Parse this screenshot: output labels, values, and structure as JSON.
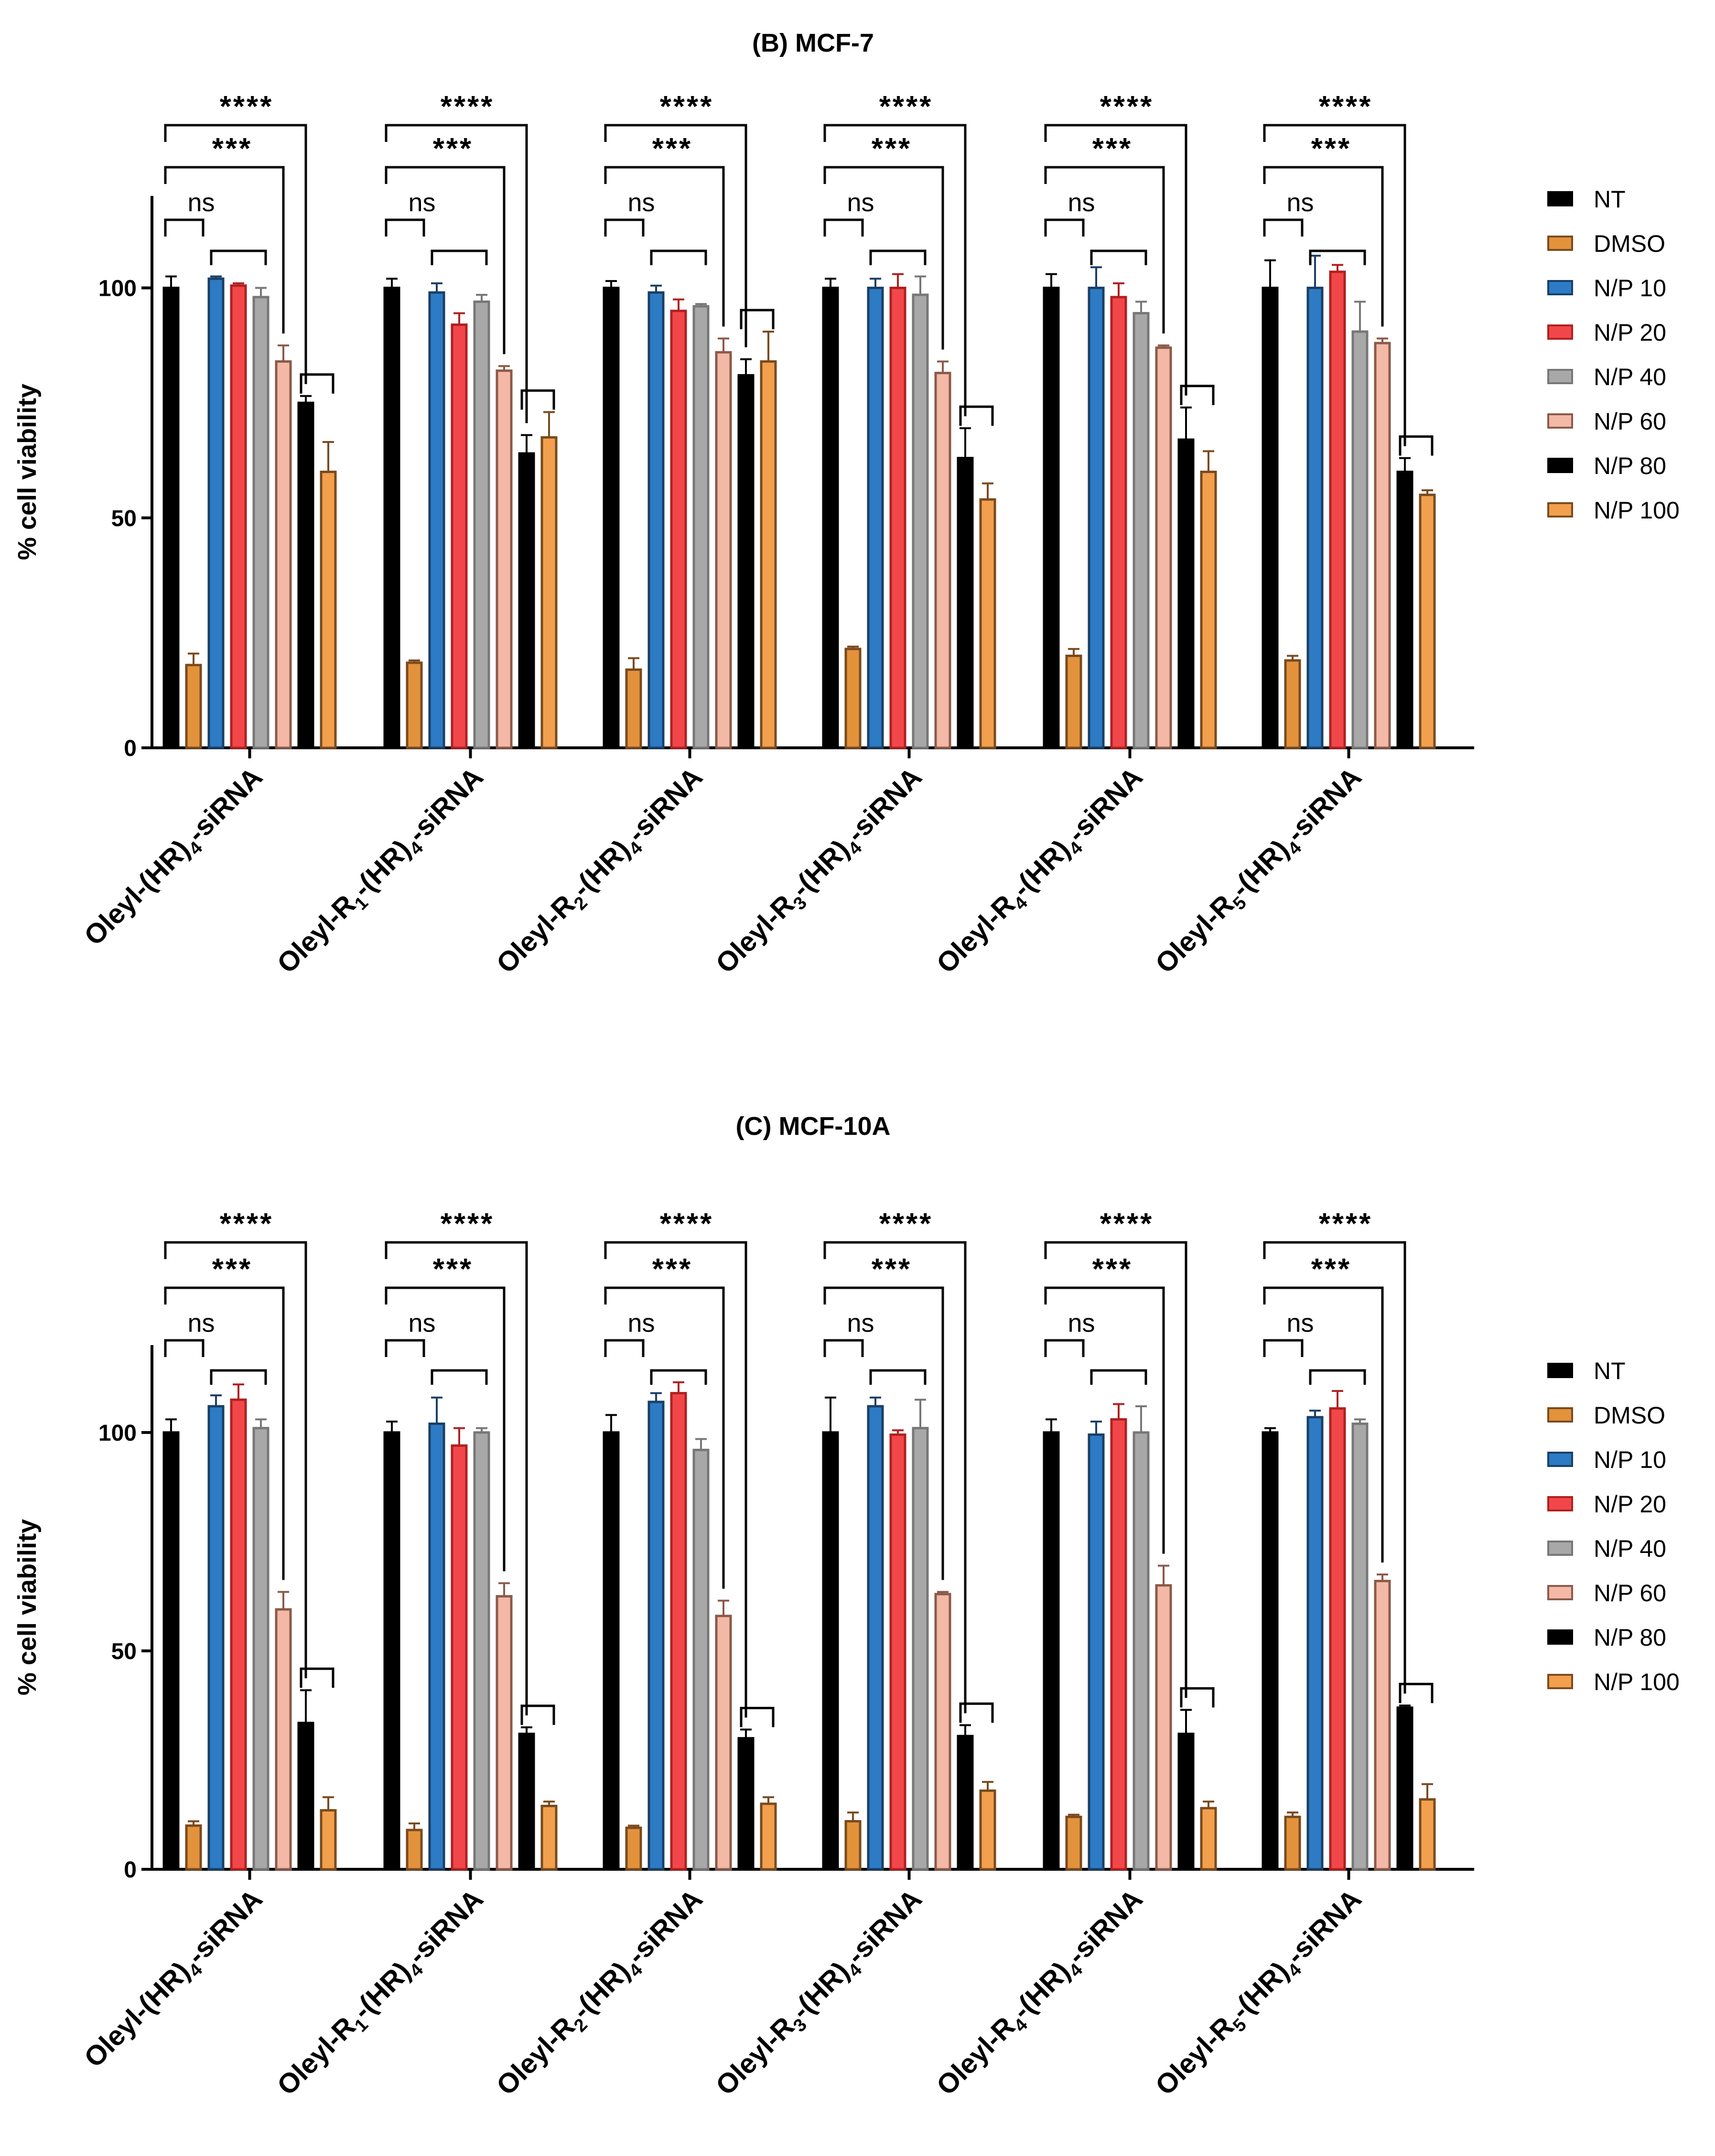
{
  "colors": {
    "NT": "#000000",
    "DMSO": "#E3923C",
    "N/P 10": "#2D7BC4",
    "N/P 20": "#F2474A",
    "N/P 40": "#A8A8A8",
    "N/P 60": "#F4B8A6",
    "N/P 80": "#000000",
    "N/P 100": "#F2A04E",
    "edge_NT": "#000000",
    "edge_DMSO": "#7A4A1E",
    "edge_N/P 10": "#1A3F66",
    "edge_N/P 20": "#B02020",
    "edge_N/P 40": "#777777",
    "edge_N/P 60": "#8A5A4A",
    "edge_N/P 80": "#000000",
    "edge_N/P 100": "#7A4A1E"
  },
  "legend": [
    "NT",
    "DMSO",
    "N/P 10",
    "N/P 20",
    "N/P 40",
    "N/P 60",
    "N/P 80",
    "N/P 100"
  ],
  "chart_data": [
    {
      "type": "bar",
      "title": "(B) MCF-7",
      "ylabel": "% cell viability",
      "xlabel": "",
      "ylim": [
        0,
        120
      ],
      "yticks": [
        "0",
        "50",
        "100"
      ],
      "categories": [
        {
          "pre": "Oleyl-(HR)",
          "sub1": "",
          "mid": "",
          "sub2": "4",
          "post": "-siRNA"
        },
        {
          "pre": "Oleyl-R",
          "sub1": "1",
          "mid": "-(HR)",
          "sub2": "4",
          "post": "-siRNA"
        },
        {
          "pre": "Oleyl-R",
          "sub1": "2",
          "mid": "-(HR)",
          "sub2": "4",
          "post": "-siRNA"
        },
        {
          "pre": "Oleyl-R",
          "sub1": "3",
          "mid": "-(HR)",
          "sub2": "4",
          "post": "-siRNA"
        },
        {
          "pre": "Oleyl-R",
          "sub1": "4",
          "mid": "-(HR)",
          "sub2": "4",
          "post": "-siRNA"
        },
        {
          "pre": "Oleyl-R",
          "sub1": "5",
          "mid": "-(HR)",
          "sub2": "4",
          "post": "-siRNA"
        }
      ],
      "series": [
        {
          "name": "NT",
          "values": [
            100,
            100,
            100,
            100,
            100,
            100
          ],
          "errors": [
            2.5,
            2,
            1.5,
            2,
            3,
            6
          ]
        },
        {
          "name": "DMSO",
          "values": [
            18,
            18.5,
            17,
            21.5,
            20,
            19
          ],
          "errors": [
            2.5,
            0.5,
            2.5,
            0.5,
            1.5,
            1
          ]
        },
        {
          "name": "N/P 10",
          "values": [
            102,
            99,
            99,
            100,
            100,
            100
          ],
          "errors": [
            0.5,
            2,
            1.5,
            2,
            4.5,
            7
          ]
        },
        {
          "name": "N/P 20",
          "values": [
            100.5,
            92,
            95,
            100,
            98,
            103.5
          ],
          "errors": [
            0.5,
            2.5,
            2.5,
            3,
            3,
            1.5
          ]
        },
        {
          "name": "N/P 40",
          "values": [
            98,
            97,
            96,
            98.5,
            94.5,
            90.5
          ],
          "errors": [
            2,
            1.5,
            0.5,
            4,
            2.5,
            6.5
          ]
        },
        {
          "name": "N/P 60",
          "values": [
            84,
            82,
            86,
            81.5,
            87,
            88
          ],
          "errors": [
            3.5,
            1,
            3,
            2.5,
            0.5,
            1
          ]
        },
        {
          "name": "N/P 80",
          "values": [
            75,
            64,
            81,
            63,
            67,
            60
          ],
          "errors": [
            1.5,
            4,
            3.5,
            6.5,
            7,
            3
          ]
        },
        {
          "name": "N/P 100",
          "values": [
            60,
            67.5,
            84,
            54,
            60,
            55
          ],
          "errors": [
            6.5,
            5.5,
            6.5,
            3.5,
            4.5,
            1
          ]
        }
      ],
      "significance": [
        {
          "label": "****",
          "pairs": [
            "NT",
            "N/P 80"
          ]
        },
        {
          "label": "***",
          "pairs": [
            "NT",
            "N/P 60"
          ]
        },
        {
          "label": "ns",
          "pairs": [
            "NT",
            "DMSO"
          ]
        }
      ]
    },
    {
      "type": "bar",
      "title": "(C)  MCF-10A",
      "ylabel": "% cell viability",
      "xlabel": "",
      "ylim": [
        0,
        120
      ],
      "yticks": [
        "0",
        "50",
        "100"
      ],
      "categories": [
        {
          "pre": "Oleyl-(HR)",
          "sub1": "",
          "mid": "",
          "sub2": "4",
          "post": "-siRNA"
        },
        {
          "pre": "Oleyl-R",
          "sub1": "1",
          "mid": "-(HR)",
          "sub2": "4",
          "post": "-siRNA"
        },
        {
          "pre": "Oleyl-R",
          "sub1": "2",
          "mid": "-(HR)",
          "sub2": "4",
          "post": "-siRNA"
        },
        {
          "pre": "Oleyl-R",
          "sub1": "3",
          "mid": "-(HR)",
          "sub2": "4",
          "post": "-siRNA"
        },
        {
          "pre": "Oleyl-R",
          "sub1": "4",
          "mid": "-(HR)",
          "sub2": "4",
          "post": "-siRNA"
        },
        {
          "pre": "Oleyl-R",
          "sub1": "5",
          "mid": "-(HR)",
          "sub2": "4",
          "post": "-siRNA"
        }
      ],
      "series": [
        {
          "name": "NT",
          "values": [
            100,
            100,
            100,
            100,
            100,
            100
          ],
          "errors": [
            3,
            2.5,
            4,
            8,
            3,
            1
          ]
        },
        {
          "name": "DMSO",
          "values": [
            10,
            9,
            9.5,
            11,
            12,
            12
          ],
          "errors": [
            1,
            1.5,
            0.5,
            2,
            0.5,
            1
          ]
        },
        {
          "name": "N/P 10",
          "values": [
            106,
            102,
            107,
            106,
            99.5,
            103.5
          ],
          "errors": [
            2.5,
            6,
            2,
            2,
            3,
            1.5
          ]
        },
        {
          "name": "N/P 20",
          "values": [
            107.5,
            97,
            109,
            99.5,
            103,
            105.5
          ],
          "errors": [
            3.5,
            4,
            2.5,
            1,
            3.5,
            4
          ]
        },
        {
          "name": "N/P 40",
          "values": [
            101,
            100,
            96,
            101,
            100,
            102
          ],
          "errors": [
            2,
            1,
            2.5,
            6.5,
            6,
            1
          ]
        },
        {
          "name": "N/P 60",
          "values": [
            59.5,
            62.5,
            58,
            63,
            65,
            66
          ],
          "errors": [
            4,
            3,
            3.5,
            0.5,
            4.5,
            1.5
          ]
        },
        {
          "name": "N/P 80",
          "values": [
            33.5,
            31,
            30,
            30.5,
            31,
            37
          ],
          "errors": [
            7.5,
            1.5,
            2,
            2.5,
            5.5,
            0.5
          ]
        },
        {
          "name": "N/P 100",
          "values": [
            13.5,
            14.5,
            15,
            18,
            14,
            16
          ],
          "errors": [
            3,
            1,
            1.5,
            2,
            1.5,
            3.5
          ]
        }
      ],
      "significance": [
        {
          "label": "****",
          "pairs": [
            "NT",
            "N/P 80"
          ]
        },
        {
          "label": "***",
          "pairs": [
            "NT",
            "N/P 60"
          ]
        },
        {
          "label": "ns",
          "pairs": [
            "NT",
            "DMSO"
          ]
        }
      ]
    }
  ]
}
